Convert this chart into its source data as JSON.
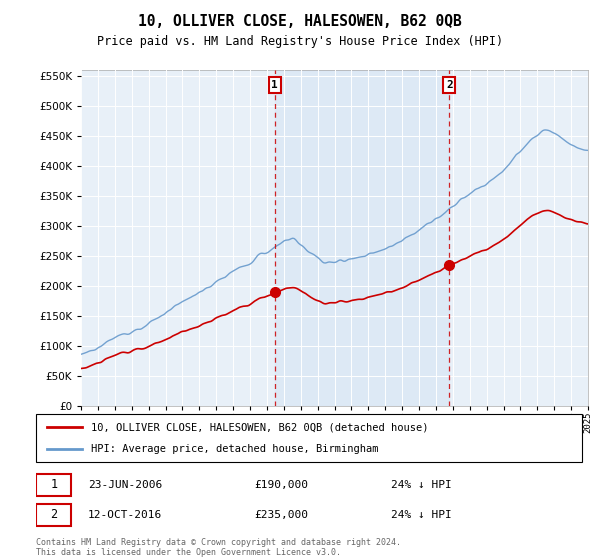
{
  "title": "10, OLLIVER CLOSE, HALESOWEN, B62 0QB",
  "subtitle": "Price paid vs. HM Land Registry's House Price Index (HPI)",
  "legend_line1": "10, OLLIVER CLOSE, HALESOWEN, B62 0QB (detached house)",
  "legend_line2": "HPI: Average price, detached house, Birmingham",
  "annotation1_date": "23-JUN-2006",
  "annotation1_price": "£190,000",
  "annotation1_hpi": "24% ↓ HPI",
  "annotation2_date": "12-OCT-2016",
  "annotation2_price": "£235,000",
  "annotation2_hpi": "24% ↓ HPI",
  "footer": "Contains HM Land Registry data © Crown copyright and database right 2024.\nThis data is licensed under the Open Government Licence v3.0.",
  "ylim": [
    0,
    560000
  ],
  "yticks": [
    0,
    50000,
    100000,
    150000,
    200000,
    250000,
    300000,
    350000,
    400000,
    450000,
    500000,
    550000
  ],
  "red_color": "#cc0000",
  "blue_color": "#6699cc",
  "blue_fill_color": "#dce8f5",
  "background_color": "#e8f0f8",
  "year1": 2006.47,
  "year2": 2016.79,
  "price1": 190000,
  "price2": 235000,
  "xmin": 1995,
  "xmax": 2025
}
